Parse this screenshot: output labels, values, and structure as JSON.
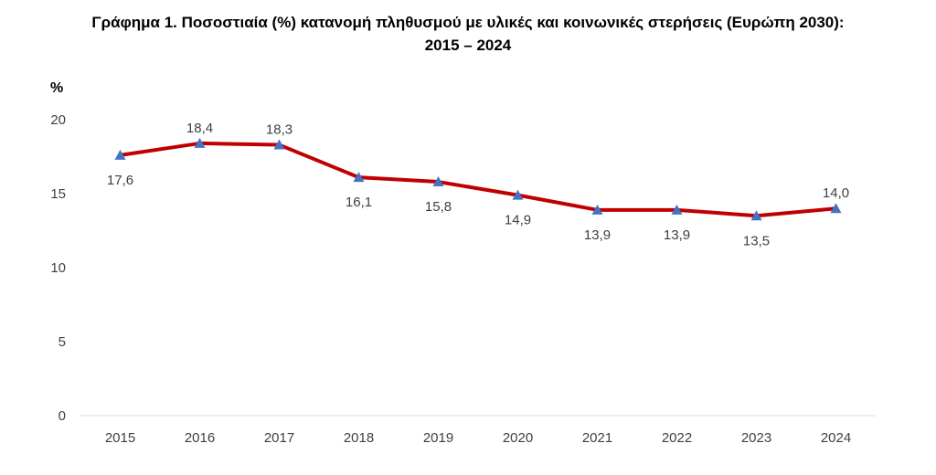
{
  "title_line1": "Γράφημα 1. Ποσοστιαία (%) κατανομή πληθυσμού με υλικές και κοινωνικές στερήσεις (Ευρώπη 2030):",
  "title_line2": "2015 – 2024",
  "chart_data": {
    "type": "line",
    "ylabel": "%",
    "ylim": [
      0,
      20
    ],
    "yticks": [
      "0",
      "5",
      "10",
      "15",
      "20"
    ],
    "categories": [
      "2015",
      "2016",
      "2017",
      "2018",
      "2019",
      "2020",
      "2021",
      "2022",
      "2023",
      "2024"
    ],
    "values": [
      17.6,
      18.4,
      18.3,
      16.1,
      15.8,
      14.9,
      13.9,
      13.9,
      13.5,
      14.0
    ],
    "value_labels": [
      "17,6",
      "18,4",
      "18,3",
      "16,1",
      "15,8",
      "14,9",
      "13,9",
      "13,9",
      "13,5",
      "14,0"
    ],
    "label_position": [
      "below",
      "above",
      "above",
      "below",
      "below",
      "below",
      "below",
      "below",
      "below",
      "above"
    ],
    "line_color": "#C00000",
    "marker_color": "#4472C4",
    "grid": false
  }
}
